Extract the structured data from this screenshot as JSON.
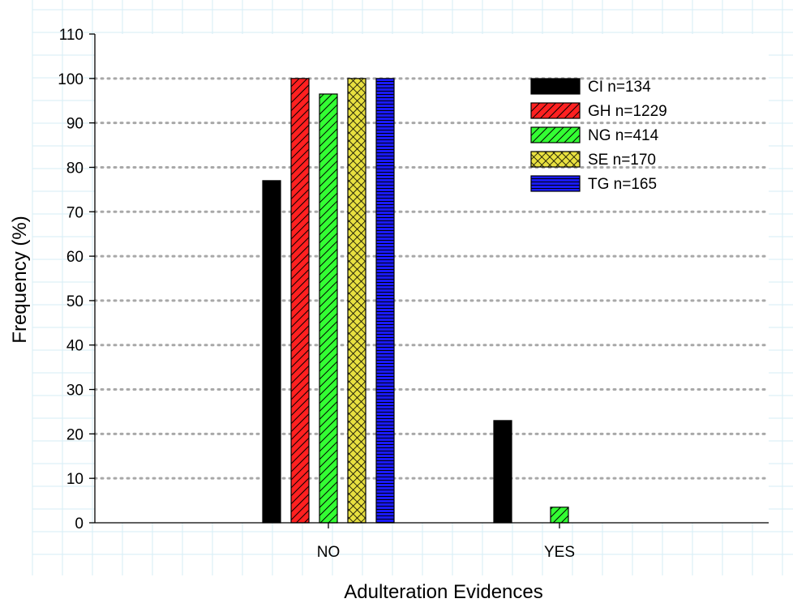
{
  "chart_data": {
    "type": "bar",
    "xlabel": "Adulteration Evidences",
    "ylabel": "Frequency (%)",
    "categories": [
      "NO",
      "YES"
    ],
    "ylim": [
      0,
      110
    ],
    "yticks": [
      0,
      10,
      20,
      30,
      40,
      50,
      60,
      70,
      80,
      90,
      100,
      110
    ],
    "grid": "horizontal dotted",
    "legend_position": "top-right",
    "series": [
      {
        "name": "CI n=134",
        "values": [
          77,
          23
        ],
        "color": "#000000",
        "pattern": "solid"
      },
      {
        "name": "GH n=1229",
        "values": [
          100,
          0
        ],
        "color": "#ff2020",
        "pattern": "diagonal"
      },
      {
        "name": "NG n=414",
        "values": [
          96.5,
          3.5
        ],
        "color": "#33ff33",
        "pattern": "diagonal"
      },
      {
        "name": "SE n=170",
        "values": [
          100,
          0
        ],
        "color": "#e8e040",
        "pattern": "crosshatch"
      },
      {
        "name": "TG n=165",
        "values": [
          100,
          0
        ],
        "color": "#1a1aff",
        "pattern": "horizontal"
      }
    ]
  }
}
